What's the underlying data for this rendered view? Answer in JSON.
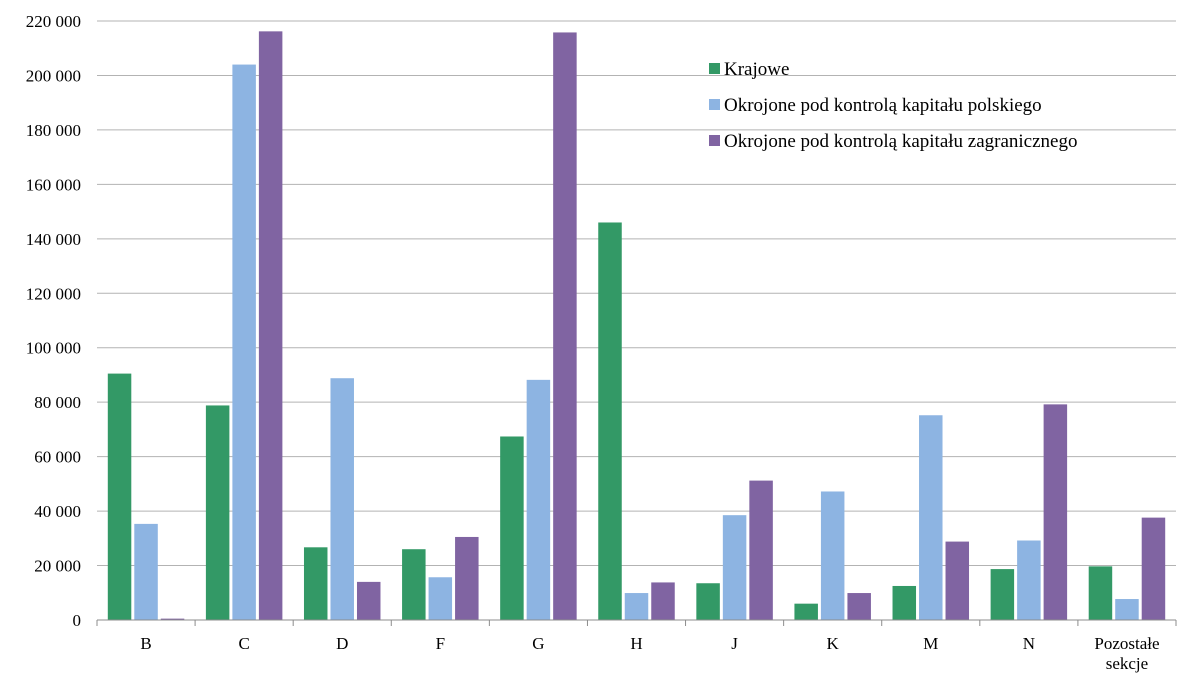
{
  "chart_data": {
    "type": "bar",
    "title": "",
    "xlabel": "",
    "ylabel": "",
    "ylim": [
      0,
      220000
    ],
    "y_tick_step": 20000,
    "y_tick_labels": [
      "0",
      "20 000",
      "40 000",
      "60 000",
      "80 000",
      "100 000",
      "120 000",
      "140 000",
      "160 000",
      "180 000",
      "200 000",
      "220 000"
    ],
    "categories": [
      "B",
      "C",
      "D",
      "F",
      "G",
      "H",
      "J",
      "K",
      "M",
      "N",
      "Pozostałe sekcje"
    ],
    "series": [
      {
        "name": "Krajowe",
        "color": "#339966",
        "values": [
          90500,
          78800,
          26700,
          26000,
          67400,
          146000,
          13500,
          6000,
          12500,
          18700,
          19700
        ]
      },
      {
        "name": "Okrojone pod kontrolą kapitału polskiego",
        "color": "#8DB4E2",
        "values": [
          35300,
          204000,
          88800,
          15700,
          88200,
          9900,
          38500,
          47200,
          75200,
          29200,
          7700
        ]
      },
      {
        "name": "Okrojone pod kontrolą kapitału zagranicznego",
        "color": "#8064A2",
        "values": [
          500,
          216200,
          14000,
          30500,
          215800,
          13800,
          51200,
          9900,
          28800,
          79200,
          37600
        ]
      }
    ],
    "grid": true,
    "legend_position": "top-right"
  }
}
